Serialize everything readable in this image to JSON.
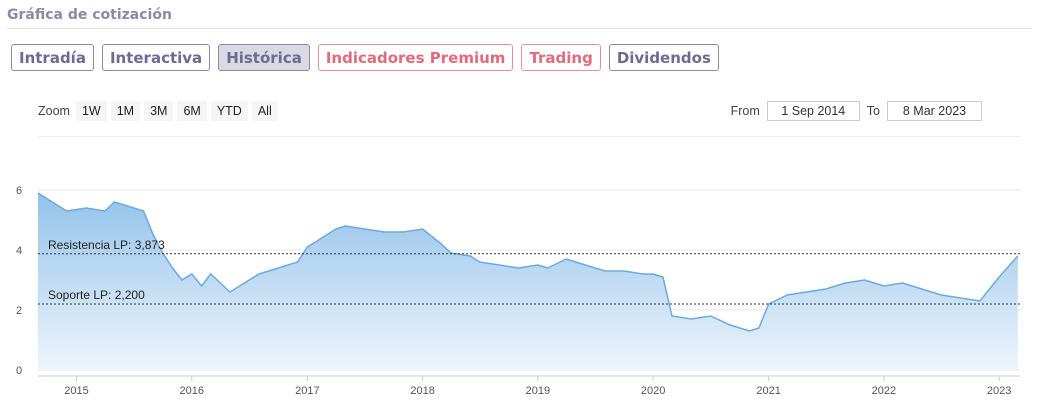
{
  "header": {
    "title": "Gráfica de cotización"
  },
  "tabs": [
    {
      "label": "Intradía",
      "style": "default"
    },
    {
      "label": "Interactiva",
      "style": "default"
    },
    {
      "label": "Histórica",
      "style": "active"
    },
    {
      "label": "Indicadores Premium",
      "style": "premium"
    },
    {
      "label": "Trading",
      "style": "premium"
    },
    {
      "label": "Dividendos",
      "style": "default"
    }
  ],
  "zoom": {
    "label": "Zoom",
    "buttons": [
      "1W",
      "1M",
      "3M",
      "6M",
      "YTD",
      "All"
    ]
  },
  "range": {
    "from_label": "From",
    "from_value": "1 Sep 2014",
    "to_label": "To",
    "to_value": "8 Mar 2023"
  },
  "colors": {
    "line": "#6aaae0",
    "area_top": "#93c2ea",
    "area_bottom": "#eef5fc",
    "tab": "#6e6b92",
    "tab_premium": "#e06c7b"
  },
  "chart_data": {
    "type": "area",
    "title": "",
    "xlabel": "",
    "ylabel": "",
    "ylim": [
      0,
      6
    ],
    "xlim": [
      "2014-09-01",
      "2023-03-08"
    ],
    "y_ticks": [
      "0",
      "2",
      "4",
      "6"
    ],
    "x_ticks": [
      "2015",
      "2016",
      "2017",
      "2018",
      "2019",
      "2020",
      "2021",
      "2022",
      "2023"
    ],
    "grid": true,
    "series": [
      {
        "x": [
          "2014-09",
          "2014-10",
          "2014-12",
          "2015-02",
          "2015-04",
          "2015-05",
          "2015-06",
          "2015-08",
          "2015-09",
          "2015-10",
          "2015-11",
          "2015-12",
          "2016-01",
          "2016-02",
          "2016-03",
          "2016-05",
          "2016-06",
          "2016-07",
          "2016-08",
          "2016-10",
          "2016-12",
          "2017-01",
          "2017-02",
          "2017-04",
          "2017-05",
          "2017-07",
          "2017-09",
          "2017-11",
          "2018-01",
          "2018-03",
          "2018-04",
          "2018-06",
          "2018-07",
          "2018-09",
          "2018-11",
          "2019-01",
          "2019-02",
          "2019-04",
          "2019-05",
          "2019-07",
          "2019-08",
          "2019-10",
          "2019-12",
          "2020-01",
          "2020-02",
          "2020-03",
          "2020-05",
          "2020-07",
          "2020-09",
          "2020-11",
          "2020-12",
          "2021-01",
          "2021-03",
          "2021-05",
          "2021-07",
          "2021-09",
          "2021-11",
          "2022-01",
          "2022-03",
          "2022-05",
          "2022-07",
          "2022-09",
          "2022-11",
          "2023-01",
          "2023-03"
        ],
        "y": [
          5.9,
          5.7,
          5.3,
          5.4,
          5.3,
          5.6,
          5.5,
          5.3,
          4.5,
          3.9,
          3.4,
          3.0,
          3.2,
          2.8,
          3.2,
          2.6,
          2.8,
          3.0,
          3.2,
          3.4,
          3.6,
          4.1,
          4.3,
          4.7,
          4.8,
          4.7,
          4.6,
          4.6,
          4.7,
          4.2,
          3.9,
          3.8,
          3.6,
          3.5,
          3.4,
          3.5,
          3.4,
          3.7,
          3.6,
          3.4,
          3.3,
          3.3,
          3.2,
          3.2,
          3.1,
          1.8,
          1.7,
          1.8,
          1.5,
          1.3,
          1.4,
          2.2,
          2.5,
          2.6,
          2.7,
          2.9,
          3.0,
          2.8,
          2.9,
          2.7,
          2.5,
          2.4,
          2.3,
          3.1,
          3.8
        ]
      }
    ],
    "lines": [
      {
        "label": "Resistencia LP: 3,873",
        "value": 3.873
      },
      {
        "label": "Soporte LP: 2,200",
        "value": 2.2
      }
    ]
  }
}
